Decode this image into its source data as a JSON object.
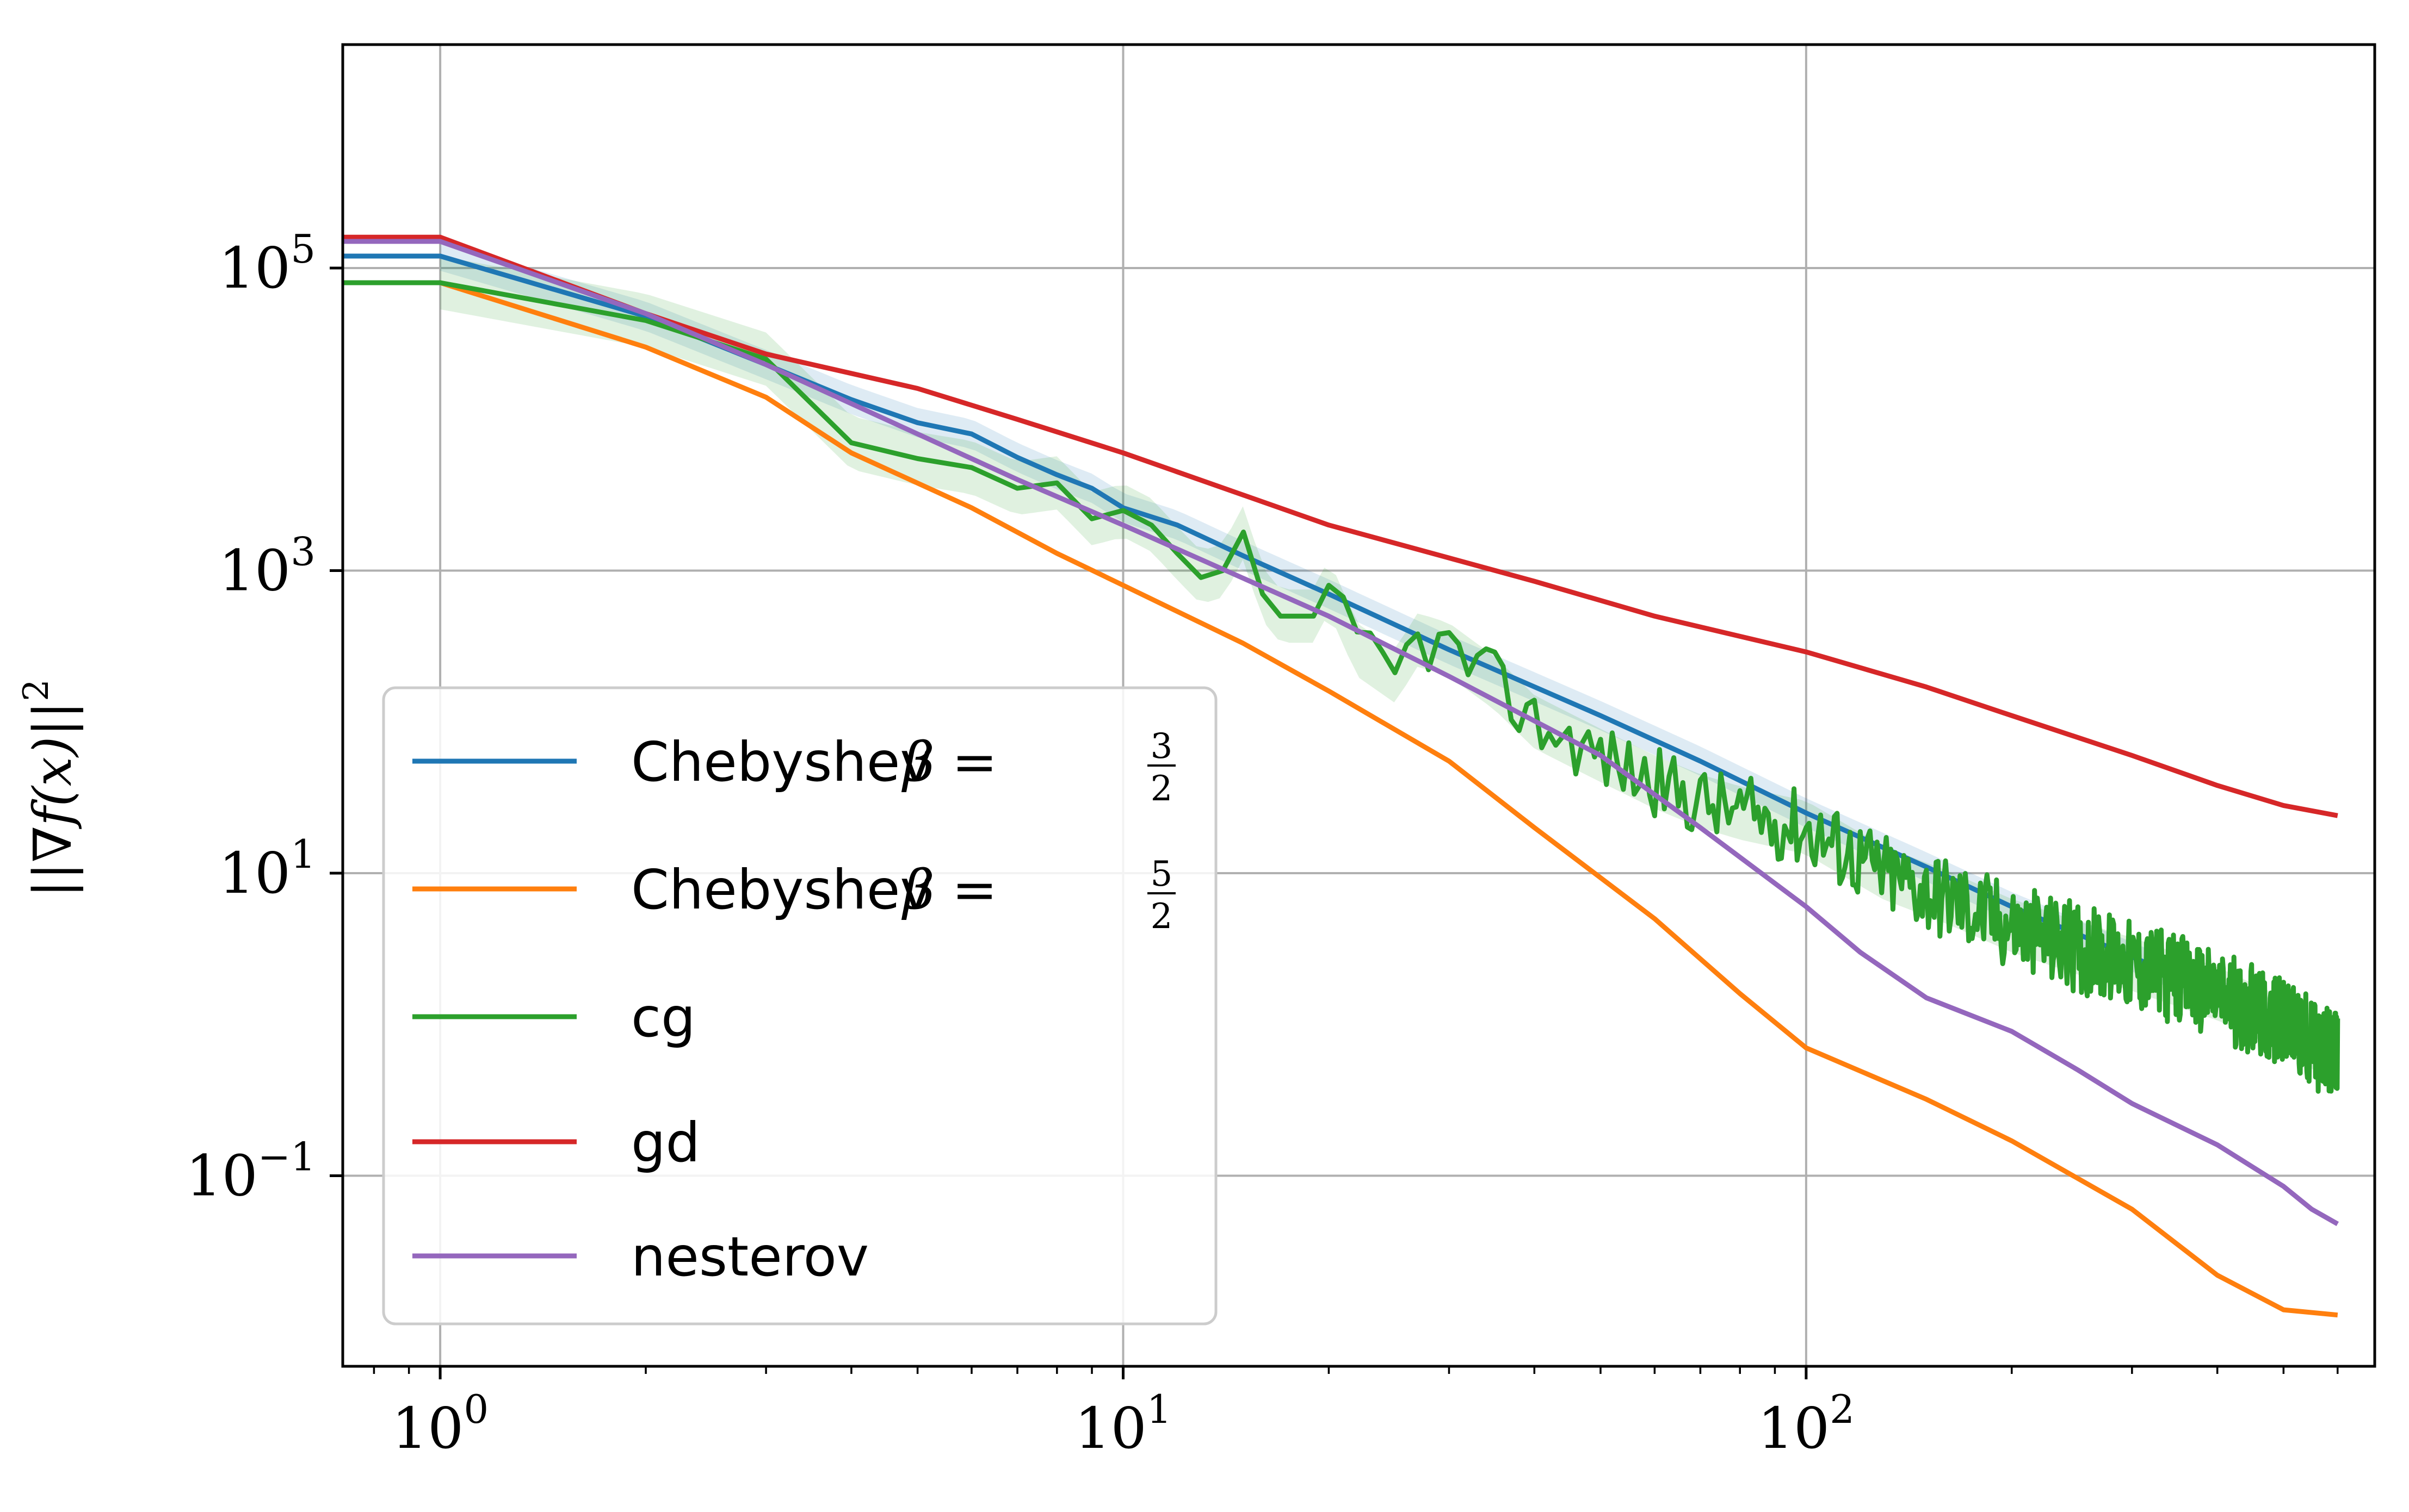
{
  "chart_data": {
    "type": "line",
    "title": "",
    "xlabel": "",
    "ylabel": "||∇f(x)||",
    "ylabel_exponent": "2",
    "xscale": "log",
    "yscale": "log",
    "xlim": [
      0.72,
      680
    ],
    "ylim": [
      0.0055,
      3000000
    ],
    "grid": true,
    "legend_position": "lower-left",
    "x_ticks": [
      {
        "value": 1,
        "base": "10",
        "exp": "0"
      },
      {
        "value": 10,
        "base": "10",
        "exp": "1"
      },
      {
        "value": 100,
        "base": "10",
        "exp": "2"
      }
    ],
    "y_ticks": [
      {
        "value": 100000,
        "base": "10",
        "exp": "5"
      },
      {
        "value": 1000,
        "base": "10",
        "exp": "3"
      },
      {
        "value": 10,
        "base": "10",
        "exp": "1"
      },
      {
        "value": 0.1,
        "base": "10",
        "exp": "−1"
      }
    ],
    "series": [
      {
        "name": "Chebyshev β = 3/2",
        "label_text": "Chebyshev",
        "label_math": "β =",
        "label_frac_num": "3",
        "label_frac_den": "2",
        "color": "#1f77b4",
        "band": true,
        "points": [
          [
            0.72,
            120000
          ],
          [
            1,
            120000
          ],
          [
            2,
            48000
          ],
          [
            3,
            23000
          ],
          [
            4,
            13500
          ],
          [
            5,
            9500
          ],
          [
            6,
            8000
          ],
          [
            7,
            5600
          ],
          [
            8,
            4300
          ],
          [
            9,
            3500
          ],
          [
            10,
            2600
          ],
          [
            12,
            2000
          ],
          [
            15,
            1250
          ],
          [
            20,
            700
          ],
          [
            30,
            300
          ],
          [
            50,
            110
          ],
          [
            70,
            55
          ],
          [
            100,
            25
          ],
          [
            150,
            11
          ],
          [
            200,
            6
          ],
          [
            300,
            2.8
          ],
          [
            400,
            1.6
          ],
          [
            500,
            1.0
          ],
          [
            600,
            0.65
          ]
        ]
      },
      {
        "name": "Chebyshev β = 5/2",
        "label_text": "Chebyshev",
        "label_math": "β =",
        "label_frac_num": "5",
        "label_frac_den": "2",
        "color": "#ff7f0e",
        "band": false,
        "points": [
          [
            0.72,
            80000
          ],
          [
            1,
            80000
          ],
          [
            2,
            30000
          ],
          [
            3,
            14000
          ],
          [
            4,
            6000
          ],
          [
            6,
            2600
          ],
          [
            8,
            1300
          ],
          [
            10,
            800
          ],
          [
            15,
            330
          ],
          [
            20,
            160
          ],
          [
            30,
            55
          ],
          [
            40,
            20
          ],
          [
            60,
            5
          ],
          [
            80,
            1.6
          ],
          [
            100,
            0.7
          ],
          [
            150,
            0.32
          ],
          [
            200,
            0.17
          ],
          [
            300,
            0.06
          ],
          [
            400,
            0.022
          ],
          [
            500,
            0.013
          ],
          [
            600,
            0.012
          ]
        ]
      },
      {
        "name": "cg",
        "label_text": "cg",
        "color": "#2ca02c",
        "band": true,
        "noisy": true,
        "points": [
          [
            0.72,
            80000
          ],
          [
            1,
            80000
          ],
          [
            2,
            45000
          ],
          [
            3,
            25000
          ],
          [
            4,
            7000
          ],
          [
            5,
            5500
          ],
          [
            6,
            4800
          ],
          [
            7,
            3500
          ],
          [
            8,
            3800
          ],
          [
            9,
            2200
          ],
          [
            10,
            2500
          ],
          [
            11,
            2000
          ],
          [
            12,
            1300
          ],
          [
            13,
            900
          ],
          [
            14,
            1000
          ],
          [
            15,
            1800
          ],
          [
            16,
            700
          ],
          [
            17,
            500
          ],
          [
            19,
            500
          ],
          [
            20,
            800
          ],
          [
            22,
            300
          ],
          [
            25,
            200
          ],
          [
            27,
            350
          ],
          [
            30,
            300
          ],
          [
            35,
            180
          ],
          [
            40,
            100
          ],
          [
            50,
            60
          ],
          [
            60,
            40
          ],
          [
            70,
            30
          ],
          [
            80,
            25
          ],
          [
            100,
            20
          ],
          [
            130,
            10
          ],
          [
            160,
            7
          ],
          [
            200,
            4.5
          ],
          [
            250,
            3.2
          ],
          [
            300,
            2.5
          ],
          [
            400,
            1.6
          ],
          [
            500,
            1.0
          ],
          [
            600,
            0.6
          ]
        ]
      },
      {
        "name": "gd",
        "label_text": "gd",
        "color": "#d62728",
        "band": false,
        "points": [
          [
            0.72,
            160000
          ],
          [
            1,
            160000
          ],
          [
            2,
            50000
          ],
          [
            3,
            27000
          ],
          [
            5,
            16000
          ],
          [
            7,
            10000
          ],
          [
            10,
            6000
          ],
          [
            20,
            2000
          ],
          [
            40,
            850
          ],
          [
            60,
            500
          ],
          [
            100,
            290
          ],
          [
            150,
            170
          ],
          [
            200,
            110
          ],
          [
            300,
            60
          ],
          [
            400,
            38
          ],
          [
            500,
            28
          ],
          [
            600,
            24
          ]
        ]
      },
      {
        "name": "nesterov",
        "label_text": "nesterov",
        "color": "#9467bd",
        "band": false,
        "points": [
          [
            0.72,
            150000
          ],
          [
            1,
            150000
          ],
          [
            2,
            50000
          ],
          [
            3,
            23000
          ],
          [
            5,
            8000
          ],
          [
            7,
            4000
          ],
          [
            10,
            2000
          ],
          [
            20,
            500
          ],
          [
            30,
            200
          ],
          [
            50,
            60
          ],
          [
            70,
            20
          ],
          [
            100,
            6
          ],
          [
            120,
            3
          ],
          [
            150,
            1.5
          ],
          [
            200,
            0.9
          ],
          [
            250,
            0.5
          ],
          [
            300,
            0.3
          ],
          [
            400,
            0.16
          ],
          [
            500,
            0.085
          ],
          [
            550,
            0.06
          ],
          [
            600,
            0.048
          ]
        ]
      }
    ]
  }
}
